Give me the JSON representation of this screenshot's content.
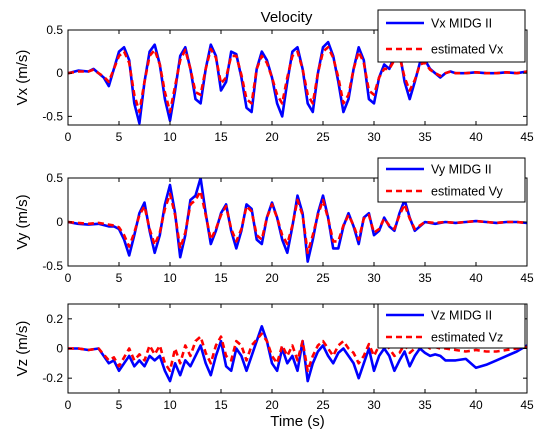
{
  "chart_data": [
    {
      "type": "line",
      "title": "Velocity",
      "xlabel": "",
      "ylabel": "Vx (m/s)",
      "xlim": [
        0,
        45
      ],
      "ylim": [
        -0.6,
        0.5
      ],
      "xticks": [
        "0",
        "5",
        "10",
        "15",
        "20",
        "25",
        "30",
        "35",
        "40",
        "45"
      ],
      "yticks": [
        "0.5",
        "0",
        "-0.5"
      ],
      "legend_position": "top-right",
      "series": [
        {
          "name": "Vx MIDG II",
          "color": "#0000ff",
          "style": "solid",
          "x": [
            0,
            1,
            2,
            2.5,
            3,
            3.5,
            4,
            4.5,
            5,
            5.5,
            6,
            6.5,
            7,
            7.5,
            8,
            8.5,
            9,
            9.5,
            10,
            10.5,
            11,
            11.5,
            12,
            12.5,
            13,
            13.5,
            14,
            14.5,
            15,
            15.5,
            16,
            16.5,
            17,
            17.5,
            18,
            18.5,
            19,
            19.5,
            20,
            20.5,
            21,
            21.5,
            22,
            22.5,
            23,
            23.5,
            24,
            24.5,
            25,
            25.5,
            26,
            26.5,
            27,
            27.5,
            28,
            28.5,
            29,
            29.5,
            30,
            30.5,
            31,
            31.5,
            32,
            32.5,
            33,
            33.5,
            34,
            34.5,
            35,
            35.5,
            36,
            36.5,
            37,
            37.5,
            38,
            39,
            40,
            41,
            42,
            43,
            44,
            45
          ],
          "y": [
            0,
            0.03,
            0.02,
            0.05,
            0,
            -0.05,
            -0.15,
            0.05,
            0.25,
            0.3,
            0.15,
            -0.35,
            -0.58,
            -0.1,
            0.25,
            0.33,
            0.1,
            -0.3,
            -0.55,
            -0.2,
            0.2,
            0.3,
            0.05,
            -0.3,
            -0.35,
            0.05,
            0.33,
            0.2,
            -0.2,
            -0.1,
            0.25,
            0.22,
            -0.05,
            -0.4,
            -0.45,
            0.05,
            0.25,
            0.15,
            -0.05,
            -0.35,
            -0.5,
            -0.1,
            0.25,
            0.3,
            0.05,
            -0.35,
            -0.45,
            0,
            0.3,
            0.36,
            0.2,
            -0.1,
            -0.45,
            -0.3,
            0.05,
            0.3,
            0.15,
            -0.3,
            -0.35,
            -0.05,
            0.1,
            0.05,
            0.2,
            0.25,
            -0.1,
            -0.3,
            -0.1,
            0.12,
            0.15,
            0.05,
            0,
            -0.05,
            0,
            0.02,
            0,
            0,
            0.01,
            0,
            0,
            0.01,
            0,
            0.02
          ]
        },
        {
          "name": "estimated Vx",
          "color": "#ff0000",
          "style": "dashed",
          "x": [
            0,
            1,
            2,
            2.5,
            3,
            3.5,
            4,
            4.5,
            5,
            5.5,
            6,
            6.5,
            7,
            7.5,
            8,
            8.5,
            9,
            9.5,
            10,
            10.5,
            11,
            11.5,
            12,
            12.5,
            13,
            13.5,
            14,
            14.5,
            15,
            15.5,
            16,
            16.5,
            17,
            17.5,
            18,
            18.5,
            19,
            19.5,
            20,
            20.5,
            21,
            21.5,
            22,
            22.5,
            23,
            23.5,
            24,
            24.5,
            25,
            25.5,
            26,
            26.5,
            27,
            27.5,
            28,
            28.5,
            29,
            29.5,
            30,
            30.5,
            31,
            31.5,
            32,
            32.5,
            33,
            33.5,
            34,
            34.5,
            35,
            35.5,
            36,
            36.5,
            37,
            37.5,
            38,
            39,
            40,
            41,
            42,
            43,
            44,
            45
          ],
          "y": [
            0,
            0.02,
            0.02,
            0.04,
            0,
            -0.04,
            -0.1,
            0.05,
            0.2,
            0.25,
            0.12,
            -0.25,
            -0.45,
            -0.1,
            0.2,
            0.27,
            0.1,
            -0.22,
            -0.45,
            -0.15,
            0.15,
            0.27,
            0.05,
            -0.22,
            -0.25,
            0.05,
            0.28,
            0.18,
            -0.12,
            -0.05,
            0.2,
            0.2,
            -0.02,
            -0.3,
            -0.35,
            0.05,
            0.2,
            0.12,
            -0.05,
            -0.25,
            -0.35,
            -0.05,
            0.2,
            0.25,
            0.05,
            -0.25,
            -0.35,
            0,
            0.25,
            0.3,
            0.18,
            -0.05,
            -0.35,
            -0.25,
            0.05,
            0.25,
            0.12,
            -0.2,
            -0.25,
            -0.05,
            0.05,
            0.05,
            0.15,
            0.2,
            -0.05,
            -0.2,
            -0.08,
            0.1,
            0.12,
            0.04,
            0,
            -0.03,
            0,
            0.02,
            0,
            0,
            0.01,
            0,
            0,
            0.01,
            0,
            0.02
          ]
        }
      ]
    },
    {
      "type": "line",
      "title": "",
      "xlabel": "",
      "ylabel": "Vy (m/s)",
      "xlim": [
        0,
        45
      ],
      "ylim": [
        -0.5,
        0.5
      ],
      "xticks": [
        "0",
        "5",
        "10",
        "15",
        "20",
        "25",
        "30",
        "35",
        "40",
        "45"
      ],
      "yticks": [
        "0.5",
        "0",
        "-0.5"
      ],
      "legend_position": "top-right",
      "series": [
        {
          "name": "Vy MIDG II",
          "color": "#0000ff",
          "style": "solid",
          "x": [
            0,
            1,
            2,
            3,
            4,
            4.5,
            5,
            5.5,
            6,
            6.5,
            7,
            7.5,
            8,
            8.5,
            9,
            9.5,
            10,
            10.5,
            11,
            11.5,
            12,
            12.5,
            13,
            13.5,
            14,
            14.5,
            15,
            15.5,
            16,
            16.5,
            17,
            17.5,
            18,
            18.5,
            19,
            19.5,
            20,
            20.5,
            21,
            21.5,
            22,
            22.5,
            23,
            23.5,
            24,
            24.5,
            25,
            25.5,
            26,
            26.5,
            27,
            27.5,
            28,
            28.5,
            29,
            29.5,
            30,
            30.5,
            31,
            31.5,
            32,
            32.5,
            33,
            33.5,
            34,
            34.5,
            35,
            36,
            37,
            38,
            39,
            40,
            41,
            42,
            43,
            44,
            45
          ],
          "y": [
            0,
            -0.02,
            -0.03,
            -0.02,
            -0.05,
            -0.05,
            -0.08,
            -0.2,
            -0.38,
            -0.15,
            0.1,
            0.22,
            -0.1,
            -0.35,
            -0.15,
            0.2,
            0.42,
            0.1,
            -0.4,
            -0.15,
            0.25,
            0.3,
            0.5,
            0.1,
            -0.25,
            -0.1,
            0.1,
            0.2,
            -0.1,
            -0.3,
            -0.1,
            0.2,
            0.15,
            -0.2,
            -0.25,
            0.05,
            0.22,
            0.05,
            -0.2,
            -0.35,
            -0.05,
            0.3,
            0.1,
            -0.45,
            -0.2,
            0.1,
            0.3,
            0.05,
            -0.3,
            -0.3,
            -0.05,
            0.1,
            -0.05,
            -0.25,
            0.05,
            0.1,
            -0.15,
            -0.1,
            0.05,
            -0.05,
            -0.1,
            0.1,
            0.25,
            0.05,
            -0.1,
            -0.05,
            0,
            -0.02,
            0,
            -0.01,
            0,
            0.01,
            0,
            -0.01,
            0,
            0,
            -0.01
          ]
        },
        {
          "name": "estimated Vy",
          "color": "#ff0000",
          "style": "dashed",
          "x": [
            0,
            1,
            2,
            3,
            4,
            4.5,
            5,
            5.5,
            6,
            6.5,
            7,
            7.5,
            8,
            8.5,
            9,
            9.5,
            10,
            10.5,
            11,
            11.5,
            12,
            12.5,
            13,
            13.5,
            14,
            14.5,
            15,
            15.5,
            16,
            16.5,
            17,
            17.5,
            18,
            18.5,
            19,
            19.5,
            20,
            20.5,
            21,
            21.5,
            22,
            22.5,
            23,
            23.5,
            24,
            24.5,
            25,
            25.5,
            26,
            26.5,
            27,
            27.5,
            28,
            28.5,
            29,
            29.5,
            30,
            30.5,
            31,
            31.5,
            32,
            32.5,
            33,
            33.5,
            34,
            34.5,
            35,
            36,
            37,
            38,
            39,
            40,
            41,
            42,
            43,
            44,
            45
          ],
          "y": [
            0,
            -0.01,
            -0.02,
            -0.01,
            -0.03,
            -0.04,
            -0.06,
            -0.15,
            -0.28,
            -0.12,
            0.08,
            0.18,
            -0.08,
            -0.26,
            -0.12,
            0.15,
            0.32,
            0.08,
            -0.3,
            -0.12,
            0.2,
            0.25,
            0.35,
            0.08,
            -0.2,
            -0.08,
            0.08,
            0.18,
            -0.08,
            -0.22,
            -0.08,
            0.18,
            0.12,
            -0.15,
            -0.2,
            0.05,
            0.2,
            0.05,
            -0.15,
            -0.25,
            -0.04,
            0.25,
            0.08,
            -0.35,
            -0.15,
            0.08,
            0.25,
            0.04,
            -0.22,
            -0.22,
            -0.04,
            0.08,
            -0.04,
            -0.2,
            0.04,
            0.08,
            -0.12,
            -0.08,
            0.04,
            -0.04,
            -0.08,
            0.08,
            0.2,
            0.04,
            -0.08,
            -0.04,
            0,
            -0.01,
            0,
            -0.01,
            0,
            0.01,
            0,
            -0.01,
            0,
            0,
            -0.01
          ]
        }
      ]
    },
    {
      "type": "line",
      "title": "",
      "xlabel": "Time (s)",
      "ylabel": "Vz (m/s)",
      "xlim": [
        0,
        45
      ],
      "ylim": [
        -0.3,
        0.3
      ],
      "xticks": [
        "0",
        "5",
        "10",
        "15",
        "20",
        "25",
        "30",
        "35",
        "40",
        "45"
      ],
      "yticks": [
        "0.2",
        "0",
        "-0.2"
      ],
      "legend_position": "top-right",
      "series": [
        {
          "name": "Vz MIDG II",
          "color": "#0000ff",
          "style": "solid",
          "x": [
            0,
            1,
            2,
            3,
            3.5,
            4,
            4.5,
            5,
            5.5,
            6,
            6.5,
            7,
            7.5,
            8,
            8.5,
            9,
            9.5,
            10,
            10.5,
            11,
            11.5,
            12,
            12.5,
            13,
            13.5,
            14,
            14.5,
            15,
            15.5,
            16,
            16.5,
            17,
            17.5,
            18,
            18.5,
            19,
            19.5,
            20,
            20.5,
            21,
            21.5,
            22,
            22.5,
            23,
            23.5,
            24,
            24.5,
            25,
            25.5,
            26,
            26.5,
            27,
            27.5,
            28,
            28.5,
            29,
            29.5,
            30,
            30.5,
            31,
            31.5,
            32,
            32.5,
            33,
            33.5,
            34,
            34.5,
            35,
            35.5,
            36,
            36.5,
            37,
            38,
            39,
            40,
            41,
            42,
            43,
            44,
            45
          ],
          "y": [
            0,
            0,
            -0.01,
            0,
            -0.05,
            -0.1,
            -0.08,
            -0.15,
            -0.1,
            -0.05,
            -0.12,
            -0.08,
            -0.12,
            -0.05,
            -0.08,
            -0.05,
            -0.15,
            -0.22,
            -0.1,
            -0.18,
            -0.08,
            -0.12,
            -0.05,
            0.02,
            -0.1,
            -0.18,
            -0.05,
            0.05,
            -0.12,
            -0.15,
            0,
            -0.05,
            -0.15,
            -0.05,
            0.05,
            0.15,
            0.05,
            -0.1,
            -0.15,
            0,
            -0.1,
            -0.05,
            -0.15,
            0.05,
            -0.22,
            -0.1,
            -0.02,
            0.02,
            -0.05,
            -0.1,
            -0.03,
            0,
            -0.05,
            -0.1,
            -0.2,
            -0.1,
            0,
            -0.15,
            -0.05,
            0,
            -0.05,
            -0.15,
            -0.08,
            -0.02,
            -0.12,
            -0.05,
            0,
            -0.03,
            -0.05,
            -0.04,
            -0.05,
            -0.08,
            -0.08,
            -0.07,
            -0.13,
            -0.11,
            -0.08,
            -0.05,
            -0.02,
            0.02
          ]
        },
        {
          "name": "estimated Vz",
          "color": "#ff0000",
          "style": "dashed",
          "x": [
            0,
            1,
            2,
            3,
            3.5,
            4,
            4.5,
            5,
            5.5,
            6,
            6.5,
            7,
            7.5,
            8,
            8.5,
            9,
            9.5,
            10,
            10.5,
            11,
            11.5,
            12,
            12.5,
            13,
            13.5,
            14,
            14.5,
            15,
            15.5,
            16,
            16.5,
            17,
            17.5,
            18,
            18.5,
            19,
            19.5,
            20,
            20.5,
            21,
            21.5,
            22,
            22.5,
            23,
            23.5,
            24,
            24.5,
            25,
            25.5,
            26,
            26.5,
            27,
            27.5,
            28,
            28.5,
            29,
            29.5,
            30,
            30.5,
            31,
            31.5,
            32,
            32.5,
            33,
            33.5,
            34,
            34.5,
            35,
            35.5,
            36,
            36.5,
            37,
            38,
            39,
            40,
            41,
            42,
            43,
            44,
            45
          ],
          "y": [
            0,
            0,
            -0.01,
            0,
            -0.04,
            -0.08,
            -0.06,
            -0.12,
            -0.06,
            0,
            -0.08,
            -0.04,
            -0.08,
            0.02,
            -0.04,
            0.02,
            -0.1,
            -0.15,
            0,
            -0.1,
            0.02,
            -0.05,
            0.05,
            0.08,
            -0.03,
            -0.1,
            0.02,
            0.08,
            -0.05,
            -0.08,
            0.05,
            0.02,
            -0.08,
            0.02,
            0.06,
            0.1,
            0.05,
            -0.05,
            -0.1,
            0.02,
            -0.05,
            0.02,
            -0.08,
            0.05,
            -0.15,
            -0.05,
            0.02,
            0.05,
            0,
            -0.05,
            0.02,
            0.05,
            0,
            -0.03,
            -0.1,
            -0.05,
            0.03,
            -0.05,
            0.02,
            0.05,
            0,
            -0.05,
            -0.03,
            0.03,
            -0.03,
            0,
            0.03,
            0.02,
            0,
            0.01,
            0,
            0,
            -0.01,
            -0.02,
            -0.01,
            -0.02,
            -0.02,
            -0.01,
            0,
            0.01
          ]
        }
      ]
    }
  ]
}
